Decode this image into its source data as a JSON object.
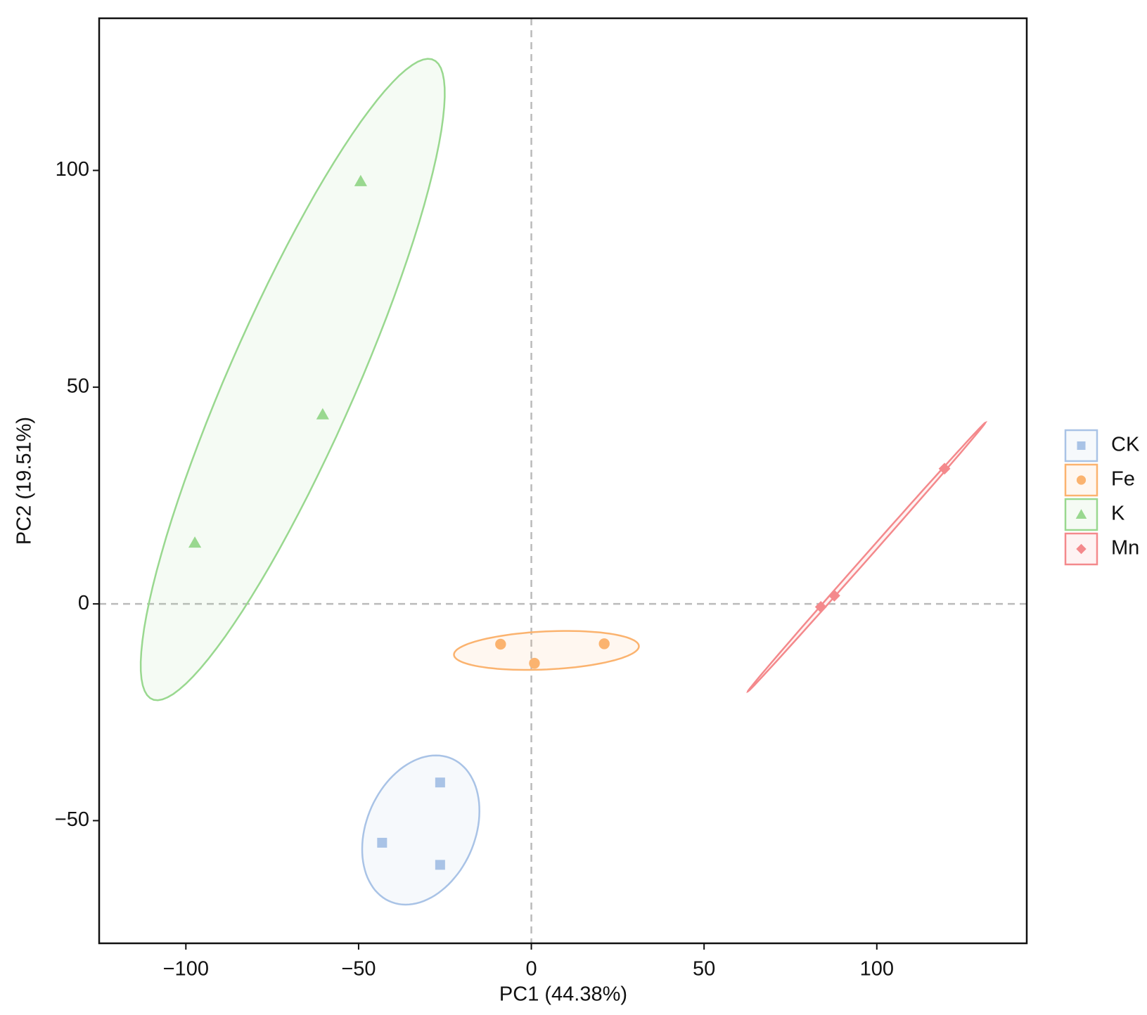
{
  "chart_data": {
    "type": "scatter",
    "x_label": "PC1 (44.38%)",
    "y_label": "PC2 (19.51%)",
    "xlim": [
      -125.1,
      143.4
    ],
    "ylim": [
      -78.3,
      135.1
    ],
    "xticks": [
      {
        "value": -100,
        "label": "−100"
      },
      {
        "value": -50,
        "label": "−50"
      },
      0,
      50,
      100
    ],
    "yticks": [
      {
        "value": -50,
        "label": "−50"
      },
      0,
      50,
      100
    ],
    "reference_lines": {
      "x": 0,
      "y": 0
    },
    "ellipses": true,
    "legend": "right",
    "series": [
      {
        "name": "CK",
        "color": "#a9c3e6",
        "marker": "square",
        "x": [
          -26.4,
          -43.2,
          -26.4
        ],
        "values": [
          -41.2,
          -55.1,
          -60.2
        ]
      },
      {
        "name": "Fe",
        "color": "#fbb36f",
        "marker": "circle",
        "x": [
          -8.9,
          0.9,
          21.1
        ],
        "values": [
          -9.3,
          -13.7,
          -9.2
        ]
      },
      {
        "name": "K",
        "color": "#99d88f",
        "marker": "triangle",
        "x": [
          -97.4,
          -60.4,
          -49.4
        ],
        "values": [
          14.1,
          43.7,
          97.5
        ]
      },
      {
        "name": "Mn",
        "color": "#f4898c",
        "marker": "diamond",
        "x": [
          83.8,
          87.7,
          119.6
        ],
        "values": [
          -0.7,
          1.9,
          31.2
        ]
      }
    ]
  }
}
